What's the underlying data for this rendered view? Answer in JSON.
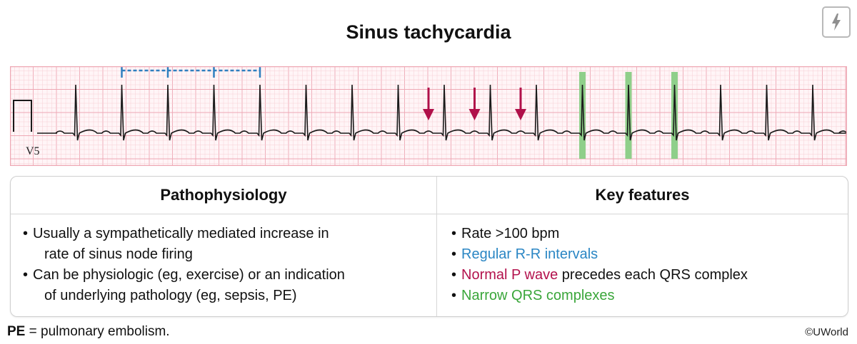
{
  "title": "Sinus tachycardia",
  "ecg": {
    "lead_label": "V5",
    "colors": {
      "grid_minor": "#f7cfd6",
      "grid_major": "#eea8b4",
      "trace": "#1a1a1a",
      "rr_marker": "#2f7fbf",
      "p_wave_arrow": "#b0104a",
      "qrs_highlight": "#8fcf8a"
    }
  },
  "table": {
    "pathophysiology": {
      "header": "Pathophysiology",
      "items": [
        {
          "line1": "Usually a sympathetically mediated increase in",
          "line2": "rate of sinus node firing"
        },
        {
          "line1": "Can be physiologic (eg, exercise) or an indication",
          "line2": "of underlying pathology (eg, sepsis, PE)"
        }
      ]
    },
    "key_features": {
      "header": "Key features",
      "rate": "Rate >100 bpm",
      "rr_intervals": "Regular R-R intervals",
      "p_wave_highlight": "Normal P wave",
      "p_wave_rest": " precedes each QRS complex",
      "narrow_qrs": "Narrow QRS complexes"
    }
  },
  "footnote": {
    "abbr": "PE",
    "text": " = pulmonary embolism."
  },
  "copyright": "©UWorld",
  "icons": {
    "corner": "lightning-icon"
  },
  "text_colors": {
    "blue": "#2a86c4",
    "magenta": "#b3124d",
    "green": "#3aa63a"
  }
}
